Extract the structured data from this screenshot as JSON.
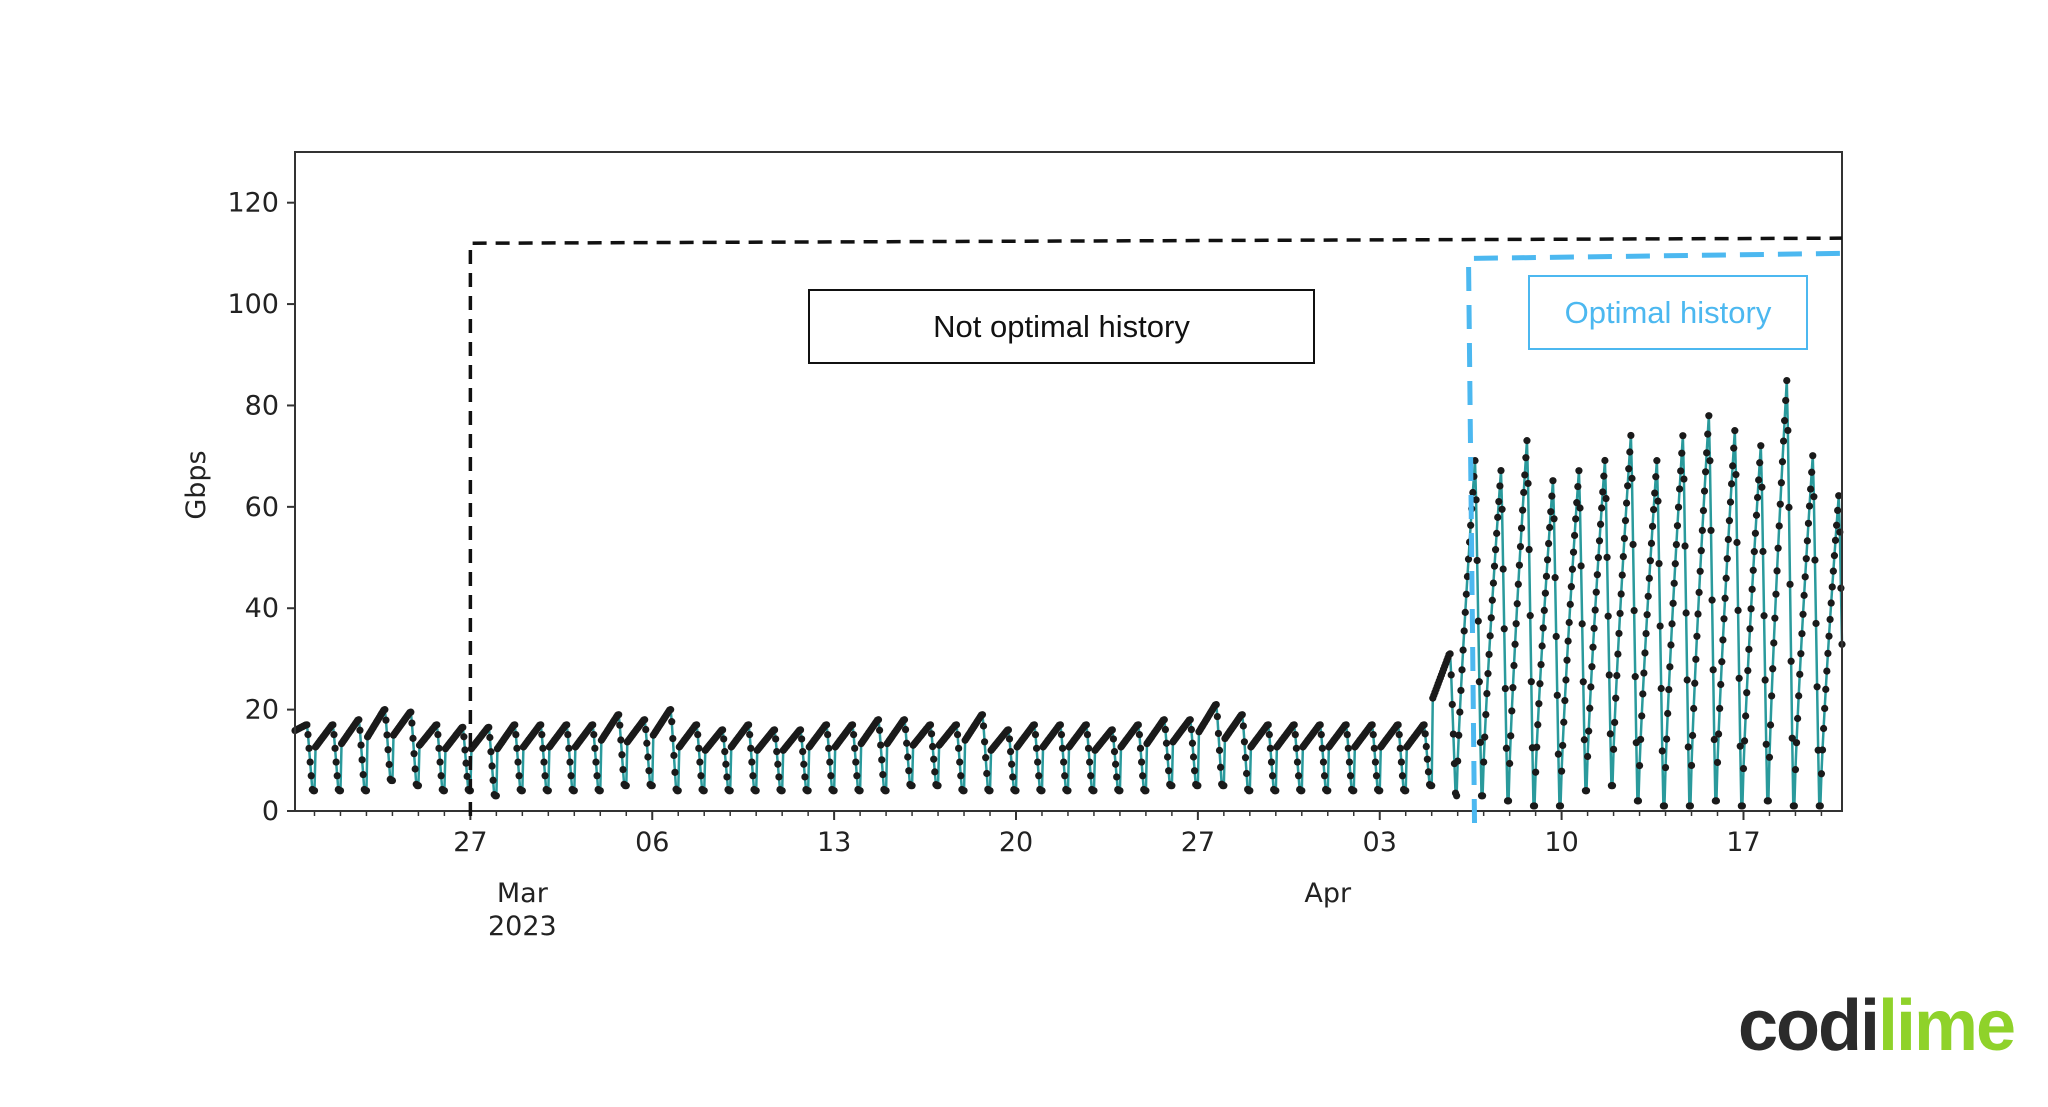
{
  "chart_data": {
    "type": "line",
    "ylabel": "Gbps",
    "ylim": [
      0,
      130
    ],
    "yticks": [
      0,
      20,
      40,
      60,
      80,
      100,
      120
    ],
    "xlim": [
      "2023-02-20T06:00",
      "2023-04-20T19:00"
    ],
    "xticks": [
      {
        "date": "2023-02-27",
        "label": "27"
      },
      {
        "date": "2023-03-06",
        "label": "06"
      },
      {
        "date": "2023-03-13",
        "label": "13"
      },
      {
        "date": "2023-03-20",
        "label": "20"
      },
      {
        "date": "2023-03-27",
        "label": "27"
      },
      {
        "date": "2023-04-03",
        "label": "03"
      },
      {
        "date": "2023-04-10",
        "label": "10"
      },
      {
        "date": "2023-04-17",
        "label": "17"
      }
    ],
    "xticks_secondary": [
      {
        "date": "2023-03-01",
        "label": "Mar",
        "sublabel": "2023"
      },
      {
        "date": "2023-04-01",
        "label": "Apr",
        "sublabel": ""
      }
    ],
    "grid": false,
    "series": [
      {
        "color": "#2a9a9c",
        "marker_color": "#1a1a1a",
        "resolution": "hourly, summarized as daily peak / trough",
        "start_date": "2023-02-20",
        "daily_peak": [
          17,
          17,
          18,
          20,
          19.5,
          17,
          16.5,
          16.5,
          17,
          17,
          17,
          17,
          19,
          18,
          20,
          17,
          16,
          17,
          16,
          16,
          17,
          17,
          18,
          18,
          17,
          17,
          19,
          16,
          17,
          17,
          17,
          16,
          17,
          18,
          18,
          21,
          19,
          17,
          17,
          17,
          17,
          17,
          17,
          17,
          31,
          70,
          68,
          74,
          66,
          68,
          70,
          75,
          70,
          75,
          79,
          76,
          73,
          86,
          71,
          63
        ],
        "daily_trough": [
          12,
          4,
          4,
          4,
          6,
          5,
          4,
          4,
          3,
          4,
          4,
          4,
          4,
          5,
          5,
          4,
          4,
          4,
          4,
          4,
          4,
          4,
          4,
          4,
          5,
          5,
          4,
          4,
          4,
          4,
          4,
          4,
          4,
          4,
          5,
          5,
          5,
          4,
          4,
          4,
          4,
          4,
          4,
          4,
          5,
          3,
          3,
          2,
          1,
          1,
          4,
          5,
          2,
          1,
          1,
          2,
          1,
          2,
          1,
          1
        ]
      }
    ],
    "annotations": [
      {
        "text": "Not optimal history",
        "color": "#111111",
        "region_start": "2023-02-27",
        "top_value": 112,
        "style": "dashed"
      },
      {
        "text": "Optimal history",
        "color": "#4cb8f0",
        "region_start": "2023-04-06T10:00",
        "top_value": 109,
        "style": "dashed"
      }
    ]
  },
  "logo": {
    "part1": "codi",
    "part2": "lime"
  }
}
